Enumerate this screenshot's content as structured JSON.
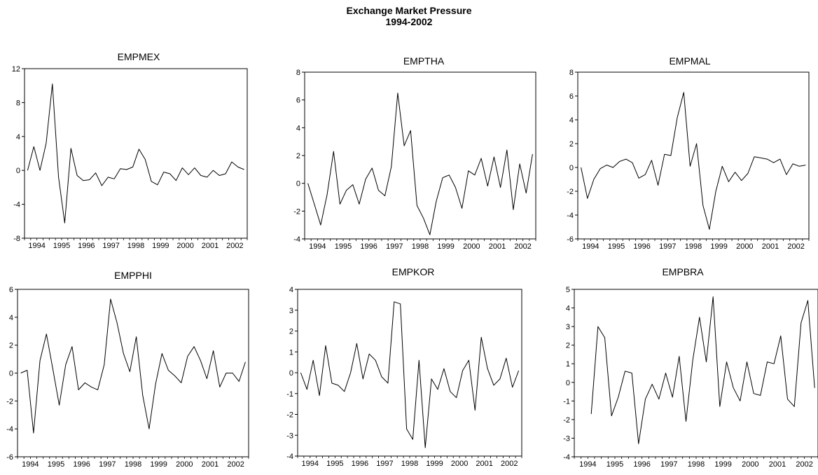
{
  "title": "Exchange Market Pressure",
  "subtitle": "1994-2002",
  "chart_data": [
    {
      "type": "line",
      "title": "EMPMEX",
      "xlabel": "",
      "ylabel": "",
      "x": [
        "1994Q1",
        "1994Q2",
        "1994Q3",
        "1994Q4",
        "1995Q1",
        "1995Q2",
        "1995Q3",
        "1995Q4",
        "1996Q1",
        "1996Q2",
        "1996Q3",
        "1996Q4",
        "1997Q1",
        "1997Q2",
        "1997Q3",
        "1997Q4",
        "1998Q1",
        "1998Q2",
        "1998Q3",
        "1998Q4",
        "1999Q1",
        "1999Q2",
        "1999Q3",
        "1999Q4",
        "2000Q1",
        "2000Q2",
        "2000Q3",
        "2000Q4",
        "2001Q1",
        "2001Q2",
        "2001Q3",
        "2001Q4",
        "2002Q1",
        "2002Q2",
        "2002Q3",
        "2002Q4"
      ],
      "ylim": [
        -8,
        12
      ],
      "yticks": [
        -8,
        -4,
        0,
        4,
        8,
        12
      ],
      "xticks": [
        "1994",
        "1995",
        "1996",
        "1997",
        "1998",
        "1999",
        "2000",
        "2001",
        "2002"
      ],
      "series": [
        {
          "values": [
            0.0,
            2.8,
            0.0,
            3.2,
            10.2,
            -0.8,
            -6.2,
            2.6,
            -0.6,
            -1.2,
            -1.1,
            -0.3,
            -1.8,
            -0.8,
            -1.0,
            0.2,
            0.1,
            0.4,
            2.5,
            1.3,
            -1.3,
            -1.7,
            -0.2,
            -0.4,
            -1.2,
            0.3,
            -0.5,
            0.3,
            -0.6,
            -0.8,
            0.0,
            -0.6,
            -0.4,
            1.0,
            0.4,
            0.1
          ]
        }
      ]
    },
    {
      "type": "line",
      "title": "EMPTHA",
      "xlabel": "",
      "ylabel": "",
      "x": [
        "1994Q1",
        "1994Q2",
        "1994Q3",
        "1994Q4",
        "1995Q1",
        "1995Q2",
        "1995Q3",
        "1995Q4",
        "1996Q1",
        "1996Q2",
        "1996Q3",
        "1996Q4",
        "1997Q1",
        "1997Q2",
        "1997Q3",
        "1997Q4",
        "1998Q1",
        "1998Q2",
        "1998Q3",
        "1998Q4",
        "1999Q1",
        "1999Q2",
        "1999Q3",
        "1999Q4",
        "2000Q1",
        "2000Q2",
        "2000Q3",
        "2000Q4",
        "2001Q1",
        "2001Q2",
        "2001Q3",
        "2001Q4",
        "2002Q1",
        "2002Q2",
        "2002Q3",
        "2002Q4"
      ],
      "ylim": [
        -4,
        8
      ],
      "yticks": [
        -4,
        -2,
        0,
        2,
        4,
        6,
        8
      ],
      "xticks": [
        "1994",
        "1995",
        "1996",
        "1997",
        "1998",
        "1999",
        "2000",
        "2001",
        "2002"
      ],
      "series": [
        {
          "values": [
            0.0,
            -1.5,
            -3.0,
            -0.8,
            2.3,
            -1.5,
            -0.5,
            -0.1,
            -1.5,
            0.3,
            1.1,
            -0.5,
            -0.9,
            1.2,
            6.5,
            2.7,
            3.8,
            -1.6,
            -2.5,
            -3.7,
            -1.3,
            0.4,
            0.6,
            -0.3,
            -1.8,
            0.9,
            0.6,
            1.8,
            -0.2,
            1.9,
            -0.3,
            2.4,
            -1.9,
            1.4,
            -0.7,
            2.1
          ]
        }
      ]
    },
    {
      "type": "line",
      "title": "EMPMAL",
      "xlabel": "",
      "ylabel": "",
      "x": [
        "1994Q1",
        "1994Q2",
        "1994Q3",
        "1994Q4",
        "1995Q1",
        "1995Q2",
        "1995Q3",
        "1995Q4",
        "1996Q1",
        "1996Q2",
        "1996Q3",
        "1996Q4",
        "1997Q1",
        "1997Q2",
        "1997Q3",
        "1997Q4",
        "1998Q1",
        "1998Q2",
        "1998Q3",
        "1998Q4",
        "1999Q1",
        "1999Q2",
        "1999Q3",
        "1999Q4",
        "2000Q1",
        "2000Q2",
        "2000Q3",
        "2000Q4",
        "2001Q1",
        "2001Q2",
        "2001Q3",
        "2001Q4",
        "2002Q1",
        "2002Q2",
        "2002Q3",
        "2002Q4"
      ],
      "ylim": [
        -6,
        8
      ],
      "yticks": [
        -6,
        -4,
        -2,
        0,
        2,
        4,
        6,
        8
      ],
      "xticks": [
        "1994",
        "1995",
        "1996",
        "1997",
        "1998",
        "1999",
        "2000",
        "2001",
        "2002"
      ],
      "series": [
        {
          "values": [
            0.0,
            -2.6,
            -1.0,
            -0.1,
            0.2,
            0.0,
            0.5,
            0.7,
            0.4,
            -0.9,
            -0.6,
            0.6,
            -1.5,
            1.1,
            1.0,
            4.2,
            6.3,
            0.1,
            2.0,
            -3.2,
            -5.2,
            -2.0,
            0.1,
            -1.2,
            -0.4,
            -1.1,
            -0.5,
            0.9,
            0.8,
            0.7,
            0.4,
            0.7,
            -0.6,
            0.3,
            0.1,
            0.2
          ]
        }
      ]
    },
    {
      "type": "line",
      "title": "EMPPHI",
      "xlabel": "",
      "ylabel": "",
      "x": [
        "1994Q1",
        "1994Q2",
        "1994Q3",
        "1994Q4",
        "1995Q1",
        "1995Q2",
        "1995Q3",
        "1995Q4",
        "1996Q1",
        "1996Q2",
        "1996Q3",
        "1996Q4",
        "1997Q1",
        "1997Q2",
        "1997Q3",
        "1997Q4",
        "1998Q1",
        "1998Q2",
        "1998Q3",
        "1998Q4",
        "1999Q1",
        "1999Q2",
        "1999Q3",
        "1999Q4",
        "2000Q1",
        "2000Q2",
        "2000Q3",
        "2000Q4",
        "2001Q1",
        "2001Q2",
        "2001Q3",
        "2001Q4",
        "2002Q1",
        "2002Q2",
        "2002Q3",
        "2002Q4"
      ],
      "ylim": [
        -6,
        6
      ],
      "yticks": [
        -6,
        -4,
        -2,
        0,
        2,
        4,
        6
      ],
      "xticks": [
        "1994",
        "1995",
        "1996",
        "1997",
        "1998",
        "1999",
        "2000",
        "2001",
        "2002"
      ],
      "series": [
        {
          "values": [
            0.0,
            0.2,
            -4.3,
            0.9,
            2.8,
            0.3,
            -2.3,
            0.6,
            1.9,
            -1.2,
            -0.7,
            -1.0,
            -1.2,
            0.6,
            5.3,
            3.6,
            1.4,
            0.1,
            2.6,
            -1.6,
            -4.0,
            -0.8,
            1.4,
            0.2,
            -0.2,
            -0.7,
            1.2,
            1.9,
            0.9,
            -0.4,
            1.6,
            -1.0,
            0.0,
            0.0,
            -0.6,
            0.8
          ]
        }
      ]
    },
    {
      "type": "line",
      "title": "EMPKOR",
      "xlabel": "",
      "ylabel": "",
      "x": [
        "1994Q1",
        "1994Q2",
        "1994Q3",
        "1994Q4",
        "1995Q1",
        "1995Q2",
        "1995Q3",
        "1995Q4",
        "1996Q1",
        "1996Q2",
        "1996Q3",
        "1996Q4",
        "1997Q1",
        "1997Q2",
        "1997Q3",
        "1997Q4",
        "1998Q1",
        "1998Q2",
        "1998Q3",
        "1998Q4",
        "1999Q1",
        "1999Q2",
        "1999Q3",
        "1999Q4",
        "2000Q1",
        "2000Q2",
        "2000Q3",
        "2000Q4",
        "2001Q1",
        "2001Q2",
        "2001Q3",
        "2001Q4",
        "2002Q1",
        "2002Q2",
        "2002Q3",
        "2002Q4"
      ],
      "ylim": [
        -4,
        4
      ],
      "yticks": [
        -4,
        -3,
        -2,
        -1,
        0,
        1,
        2,
        3,
        4
      ],
      "xticks": [
        "1994",
        "1995",
        "1996",
        "1997",
        "1998",
        "1999",
        "2000",
        "2001",
        "2002"
      ],
      "series": [
        {
          "values": [
            0.0,
            -0.8,
            0.6,
            -1.1,
            1.3,
            -0.5,
            -0.6,
            -0.9,
            0.0,
            1.4,
            -0.3,
            0.9,
            0.6,
            -0.2,
            -0.5,
            3.4,
            3.3,
            -2.7,
            -3.2,
            0.6,
            -3.6,
            -0.3,
            -0.8,
            0.2,
            -0.9,
            -1.2,
            0.1,
            0.6,
            -1.8,
            1.7,
            0.2,
            -0.6,
            -0.3,
            0.7,
            -0.7,
            0.1
          ]
        }
      ]
    },
    {
      "type": "line",
      "title": "EMPBRA",
      "xlabel": "",
      "ylabel": "",
      "x": [
        "1994Q3",
        "1994Q4",
        "1995Q1",
        "1995Q2",
        "1995Q3",
        "1995Q4",
        "1996Q1",
        "1996Q2",
        "1996Q3",
        "1996Q4",
        "1997Q1",
        "1997Q2",
        "1997Q3",
        "1997Q4",
        "1998Q1",
        "1998Q2",
        "1998Q3",
        "1998Q4",
        "1999Q1",
        "1999Q2",
        "1999Q3",
        "1999Q4",
        "2000Q1",
        "2000Q2",
        "2000Q3",
        "2000Q4",
        "2001Q1",
        "2001Q2",
        "2001Q3",
        "2001Q4",
        "2002Q1",
        "2002Q2",
        "2002Q3",
        "2002Q4"
      ],
      "ylim": [
        -4,
        5
      ],
      "yticks": [
        -4,
        -3,
        -2,
        -1,
        0,
        1,
        2,
        3,
        4,
        5
      ],
      "xticks": [
        "1994",
        "1995",
        "1996",
        "1997",
        "1998",
        "1999",
        "2000",
        "2001",
        "2002"
      ],
      "series": [
        {
          "values": [
            -1.7,
            3.0,
            2.4,
            -1.8,
            -0.8,
            0.6,
            0.5,
            -3.3,
            -0.9,
            -0.1,
            -0.9,
            0.5,
            -0.8,
            1.4,
            -2.1,
            1.2,
            3.5,
            1.1,
            4.6,
            -1.3,
            1.1,
            -0.3,
            -1.0,
            1.1,
            -0.6,
            -0.7,
            1.1,
            1.0,
            2.5,
            -0.9,
            -1.3,
            3.2,
            4.4,
            -0.3
          ]
        }
      ]
    }
  ]
}
